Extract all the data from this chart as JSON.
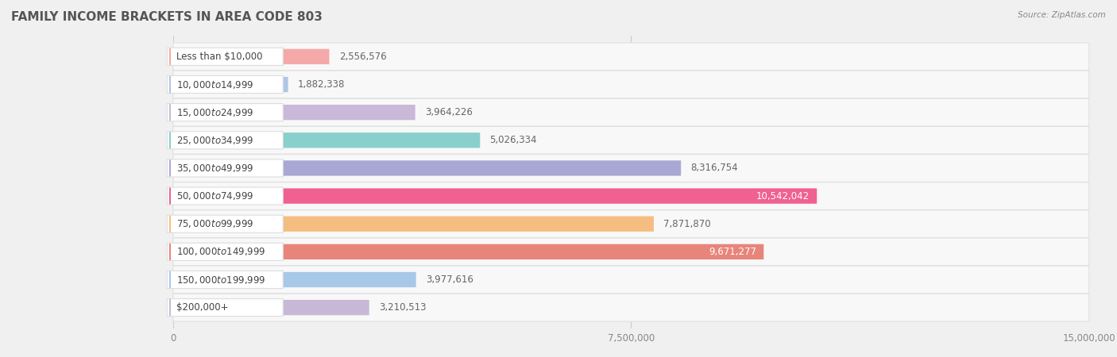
{
  "title": "FAMILY INCOME BRACKETS IN AREA CODE 803",
  "source": "Source: ZipAtlas.com",
  "categories": [
    "Less than $10,000",
    "$10,000 to $14,999",
    "$15,000 to $24,999",
    "$25,000 to $34,999",
    "$35,000 to $49,999",
    "$50,000 to $74,999",
    "$75,000 to $99,999",
    "$100,000 to $149,999",
    "$150,000 to $199,999",
    "$200,000+"
  ],
  "values": [
    2556576,
    1882338,
    3964226,
    5026334,
    8316754,
    10542042,
    7871870,
    9671277,
    3977616,
    3210513
  ],
  "bar_colors": [
    "#f4a9a8",
    "#aec6e8",
    "#c9b8d8",
    "#89d0cc",
    "#a9a8d4",
    "#f06090",
    "#f5be80",
    "#e8857a",
    "#a8c8e8",
    "#c8b8d8"
  ],
  "value_labels": [
    "2,556,576",
    "1,882,338",
    "3,964,226",
    "5,026,334",
    "8,316,754",
    "10,542,042",
    "7,871,870",
    "9,671,277",
    "3,977,616",
    "3,210,513"
  ],
  "white_label_indices": [
    5,
    7
  ],
  "xlim": [
    0,
    15000000
  ],
  "xticks": [
    0,
    7500000,
    15000000
  ],
  "xtick_labels": [
    "0",
    "7,500,000",
    "15,000,000"
  ],
  "background_color": "#f0f0f0",
  "bar_bg_color": "#ffffff",
  "row_bg_color": "#f8f8f8",
  "title_fontsize": 11,
  "label_fontsize": 8.5,
  "value_fontsize": 8.5
}
